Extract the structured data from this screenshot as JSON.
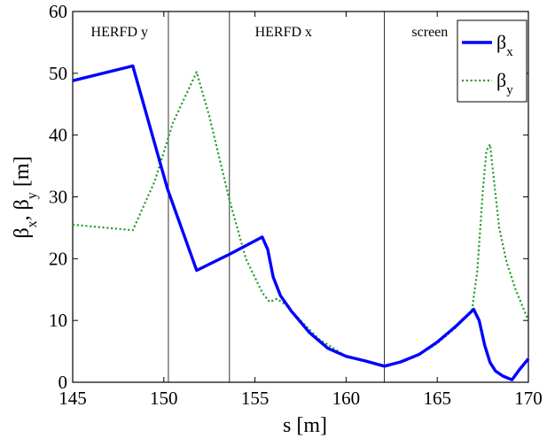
{
  "chart_data": {
    "type": "line",
    "xlabel": "s [m]",
    "ylabel": {
      "main1": "β",
      "sub1": "x",
      "sep": ", β",
      "sub2": "y",
      "unit": " [m]"
    },
    "xlim": [
      145,
      170
    ],
    "ylim": [
      0,
      60
    ],
    "xticks": [
      145,
      150,
      155,
      160,
      165,
      170
    ],
    "yticks": [
      0,
      10,
      20,
      30,
      40,
      50,
      60
    ],
    "legend_placement": "top-right",
    "region_markers": [
      {
        "x": 150.25,
        "label": ""
      },
      {
        "x": 153.6,
        "label": ""
      },
      {
        "x": 162.1,
        "label": ""
      }
    ],
    "region_labels": [
      {
        "text": "HERFD y",
        "x": 146.0,
        "y": 56
      },
      {
        "text": "HERFD x",
        "x": 155.0,
        "y": 56
      },
      {
        "text": "screen",
        "x": 163.6,
        "y": 56
      }
    ],
    "series": [
      {
        "name": "βx",
        "legend_main": "β",
        "legend_sub": "x",
        "color": "#0000ff",
        "style": "solid",
        "x": [
          145,
          148.3,
          150.2,
          151.8,
          153.6,
          155.4,
          155.7,
          156.0,
          156.4,
          157.0,
          158.0,
          159.0,
          160.0,
          161.0,
          162.1,
          163.0,
          164.0,
          165.0,
          166.0,
          167.0,
          167.3,
          167.6,
          167.9,
          168.2,
          168.6,
          169.1,
          169.5,
          170.0
        ],
        "y": [
          48.8,
          51.2,
          31.3,
          18.1,
          20.7,
          23.5,
          21.5,
          17.0,
          14.0,
          11.5,
          8.0,
          5.5,
          4.2,
          3.5,
          2.6,
          3.3,
          4.5,
          6.5,
          9.0,
          11.8,
          10.0,
          6.0,
          3.2,
          1.8,
          1.0,
          0.4,
          2.0,
          3.8
        ]
      },
      {
        "name": "βy",
        "legend_main": "β",
        "legend_sub": "y",
        "color": "#2ca02c",
        "style": "dotted",
        "x": [
          145,
          148.3,
          149.5,
          150.5,
          151.8,
          152.5,
          153.6,
          154.5,
          155.4,
          155.8,
          156.2,
          156.7,
          157.5,
          158.5,
          160.0,
          161.0,
          162.1,
          163.0,
          164.0,
          165.0,
          166.0,
          166.9,
          167.2,
          167.5,
          167.7,
          167.9,
          168.1,
          168.4,
          168.8,
          169.3,
          170.0
        ],
        "y": [
          25.5,
          24.6,
          32.5,
          42.0,
          50.2,
          43.0,
          29.5,
          20.0,
          14.5,
          13.0,
          13.5,
          12.5,
          10.0,
          7.0,
          4.2,
          3.4,
          2.5,
          3.4,
          4.4,
          6.3,
          8.8,
          11.6,
          18.0,
          31.0,
          37.5,
          38.5,
          33.0,
          25.0,
          19.5,
          15.0,
          10.0
        ]
      }
    ]
  }
}
